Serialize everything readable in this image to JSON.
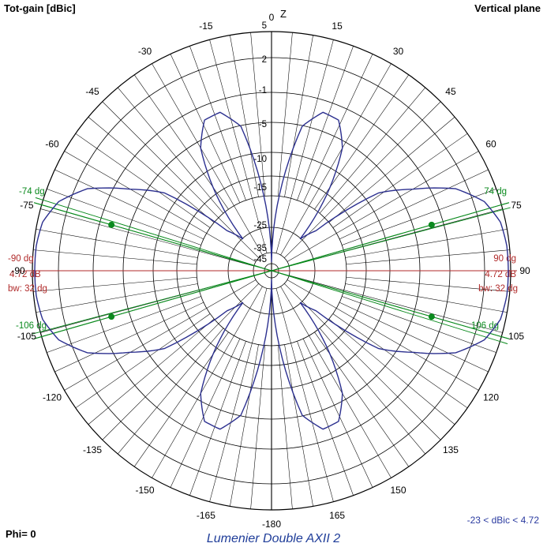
{
  "header": {
    "left": "Tot-gain [dBic]",
    "right": "Vertical plane"
  },
  "footer": {
    "phi": "Phi= 0",
    "title": "Lumenier Double AXII 2",
    "range": "-23 < dBic < 4.72"
  },
  "colors": {
    "pattern": "#2b2f8f",
    "beam_marker": "#0b8a1e",
    "max_marker": "#b02a2a",
    "grid": "#000000"
  },
  "chart_data": {
    "type": "polar",
    "axis_label": "Z",
    "angle_ticks": [
      "0",
      "15",
      "30",
      "45",
      "60",
      "75",
      "90",
      "105",
      "120",
      "135",
      "150",
      "165",
      "-180",
      "-165",
      "-150",
      "-135",
      "-120",
      "-105",
      "-90",
      "-75",
      "-60",
      "-45",
      "-30",
      "-15"
    ],
    "radial_ticks": [
      "5",
      "2",
      "-1",
      "-5",
      "-10",
      "-15",
      "-25",
      "-35",
      "-45"
    ],
    "gain_range": [
      -23,
      4.72
    ],
    "pattern": {
      "series": "Tot-gain",
      "angles_deg": [
        0,
        6,
        12,
        18,
        24,
        30,
        36,
        42,
        48,
        54,
        60,
        66,
        72,
        78,
        84,
        90,
        96,
        102,
        108,
        114,
        120,
        126,
        132,
        138,
        144,
        150,
        156,
        162,
        168,
        174,
        180
      ],
      "gain_dbic": [
        -22,
        -14,
        -5.7,
        -3.5,
        -3.7,
        -6.4,
        -12,
        -18,
        -16,
        -7.5,
        -3.9,
        0.6,
        3.2,
        4.4,
        4.7,
        4.72,
        4.7,
        4.4,
        3.2,
        0.6,
        -3.9,
        -7.5,
        -16,
        -18,
        -12,
        -6.4,
        -3.7,
        -3.5,
        -5.7,
        -14,
        -22
      ]
    },
    "markers": {
      "max": {
        "angle": "90 dg",
        "angle_neg": "-90 dg",
        "gain": "4.72 dB",
        "bw": "bw: 32 dg"
      },
      "beam_edges": [
        "74 dg",
        "106 dg",
        "-74 dg",
        "-106 dg"
      ]
    }
  }
}
